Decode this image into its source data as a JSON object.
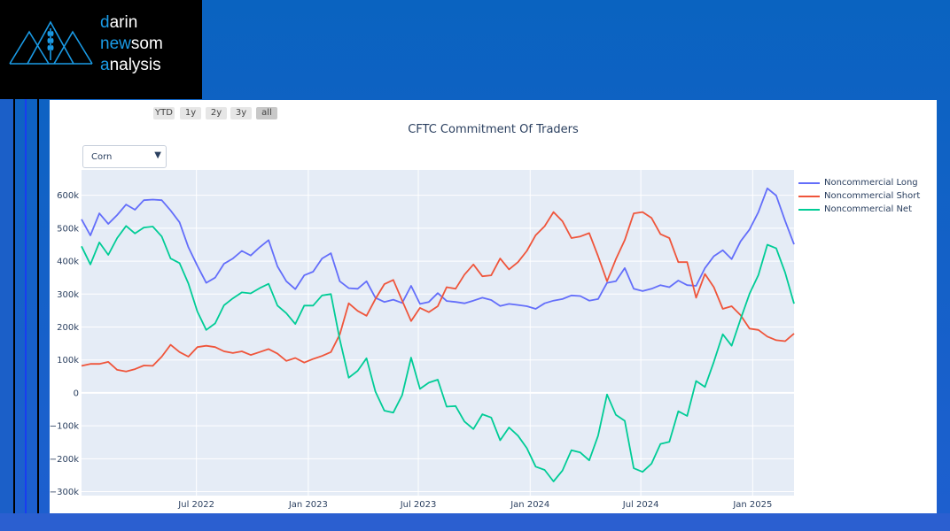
{
  "logo": {
    "line1_first": "d",
    "line1_rest": "arin",
    "line2_first": "n",
    "line2_mid": "ew",
    "line2_rest": "som",
    "line3_first": "a",
    "line3_rest": "nalysis"
  },
  "range_selector": [
    {
      "label": "YTD",
      "active": false
    },
    {
      "label": "1y",
      "active": false
    },
    {
      "label": "2y",
      "active": false
    },
    {
      "label": "3y",
      "active": false
    },
    {
      "label": "all",
      "active": true
    }
  ],
  "dropdown": {
    "selected": "Corn",
    "icon": "triangle-down-icon"
  },
  "colors": {
    "long": "#636efa",
    "short": "#ef553b",
    "net": "#00cc96",
    "plot_bg": "#e5ecf6"
  },
  "chart_data": {
    "type": "line",
    "title": "CFTC Commitment Of Traders",
    "xlabel": "",
    "ylabel": "",
    "x_range": [
      "2021-12-24",
      "2025-03-10"
    ],
    "x_ticks": [
      {
        "date": "2022-07-01",
        "label": "Jul 2022"
      },
      {
        "date": "2023-01-01",
        "label": "Jan 2023"
      },
      {
        "date": "2023-07-01",
        "label": "Jul 2023"
      },
      {
        "date": "2024-01-01",
        "label": "Jan 2024"
      },
      {
        "date": "2024-07-01",
        "label": "Jul 2024"
      },
      {
        "date": "2025-01-01",
        "label": "Jan 2025"
      }
    ],
    "ylim": [
      -312000,
      677000
    ],
    "y_ticks": [
      {
        "value": 600000,
        "label": "600k"
      },
      {
        "value": 500000,
        "label": "500k"
      },
      {
        "value": 400000,
        "label": "400k"
      },
      {
        "value": 300000,
        "label": "300k"
      },
      {
        "value": 200000,
        "label": "200k"
      },
      {
        "value": 100000,
        "label": "100k"
      },
      {
        "value": 0,
        "label": "0"
      },
      {
        "value": -100000,
        "label": "−100k"
      },
      {
        "value": -200000,
        "label": "−200k"
      },
      {
        "value": -300000,
        "label": "−300k"
      }
    ],
    "grid": true,
    "legend_position": "right",
    "series": [
      {
        "name": "Noncommercial Long",
        "color": "#636efa",
        "values": [
          527000,
          478000,
          545000,
          513000,
          540000,
          572000,
          556000,
          585000,
          587000,
          585000,
          554000,
          518000,
          442000,
          386000,
          334000,
          350000,
          392000,
          408000,
          431000,
          417000,
          442000,
          464000,
          384000,
          339000,
          315000,
          357000,
          368000,
          408000,
          424000,
          339000,
          318000,
          316000,
          339000,
          289000,
          276000,
          283000,
          273000,
          325000,
          270000,
          276000,
          303000,
          279000,
          276000,
          272000,
          280000,
          289000,
          282000,
          264000,
          270000,
          267000,
          263000,
          255000,
          272000,
          280000,
          285000,
          296000,
          294000,
          280000,
          285000,
          334000,
          339000,
          379000,
          316000,
          309000,
          316000,
          327000,
          321000,
          341000,
          327000,
          325000,
          379000,
          415000,
          433000,
          406000,
          460000,
          496000,
          549000,
          621000,
          599000,
          522000,
          451000
        ]
      },
      {
        "name": "Noncommercial Short",
        "color": "#ef553b",
        "values": [
          82000,
          88000,
          88000,
          94000,
          70000,
          65000,
          72000,
          83000,
          82000,
          110000,
          146000,
          124000,
          110000,
          139000,
          143000,
          139000,
          126000,
          121000,
          126000,
          115000,
          124000,
          133000,
          119000,
          97000,
          106000,
          92000,
          103000,
          112000,
          124000,
          177000,
          272000,
          249000,
          234000,
          285000,
          330000,
          343000,
          280000,
          218000,
          258000,
          245000,
          263000,
          321000,
          316000,
          359000,
          390000,
          354000,
          357000,
          408000,
          375000,
          397000,
          431000,
          479000,
          506000,
          549000,
          521000,
          470000,
          475000,
          485000,
          415000,
          339000,
          406000,
          464000,
          545000,
          549000,
          531000,
          482000,
          470000,
          397000,
          397000,
          289000,
          361000,
          321000,
          255000,
          263000,
          236000,
          195000,
          191000,
          171000,
          160000,
          157000,
          180000
        ]
      },
      {
        "name": "Noncommercial Net",
        "color": "#00cc96",
        "values": [
          445000,
          390000,
          457000,
          419000,
          470000,
          507000,
          484000,
          502000,
          505000,
          475000,
          408000,
          394000,
          332000,
          247000,
          191000,
          211000,
          266000,
          287000,
          305000,
          302000,
          318000,
          331000,
          265000,
          242000,
          209000,
          265000,
          265000,
          296000,
          300000,
          162000,
          46000,
          67000,
          105000,
          4000,
          -54000,
          -60000,
          -7000,
          107000,
          12000,
          31000,
          40000,
          -42000,
          -40000,
          -87000,
          -110000,
          -65000,
          -75000,
          -144000,
          -105000,
          -130000,
          -168000,
          -224000,
          -234000,
          -269000,
          -236000,
          -174000,
          -181000,
          -205000,
          -130000,
          -5000,
          -67000,
          -85000,
          -229000,
          -240000,
          -215000,
          -155000,
          -149000,
          -56000,
          -70000,
          36000,
          18000,
          94000,
          178000,
          143000,
          224000,
          301000,
          358000,
          450000,
          439000,
          365000,
          271000
        ]
      }
    ]
  }
}
